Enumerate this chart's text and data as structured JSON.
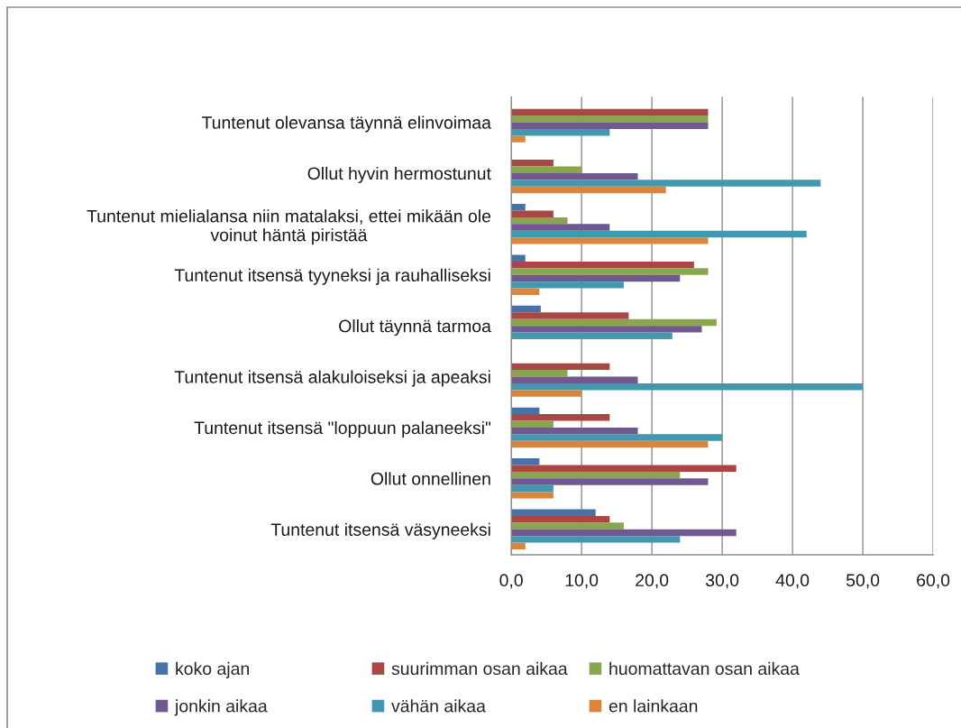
{
  "chart_data": {
    "type": "bar",
    "orientation": "horizontal",
    "categories": [
      "Tuntenut olevansa täynnä elinvoimaa",
      "Ollut hyvin hermostunut",
      "Tuntenut mielialansa niin matalaksi, ettei mikään ole voinut häntä piristää",
      "Tuntenut itsensä tyyneksi ja rauhalliseksi",
      "Ollut täynnä tarmoa",
      "Tuntenut itsensä alakuloiseksi ja apeaksi",
      "Tuntenut itsensä \"loppuun palaneeksi\"",
      "Ollut onnellinen",
      "Tuntenut itsensä väsyneeksi"
    ],
    "series": [
      {
        "name": "koko ajan",
        "color": "#4573a7",
        "values": [
          0,
          0,
          2,
          2,
          4.2,
          0,
          4,
          4,
          12
        ]
      },
      {
        "name": "suurimman osan aikaa",
        "color": "#aa4643",
        "values": [
          28,
          6,
          6,
          26,
          16.7,
          14,
          14,
          32,
          14
        ]
      },
      {
        "name": "huomattavan osan aikaa",
        "color": "#89a54e",
        "values": [
          28,
          10,
          8,
          28,
          29.2,
          8,
          6,
          24,
          16
        ]
      },
      {
        "name": "jonkin aikaa",
        "color": "#71588f",
        "values": [
          28,
          18,
          14,
          24,
          27.1,
          18,
          18,
          28,
          32
        ]
      },
      {
        "name": "vähän aikaa",
        "color": "#4198af",
        "values": [
          14,
          44,
          42,
          16,
          22.9,
          50,
          30,
          6,
          24
        ]
      },
      {
        "name": "en lainkaan",
        "color": "#db843d",
        "values": [
          2,
          22,
          28,
          4,
          0,
          10,
          28,
          6,
          2
        ]
      }
    ],
    "xlim": [
      0,
      60
    ],
    "xticks": [
      {
        "value": 0,
        "label": "0,0"
      },
      {
        "value": 10,
        "label": "10,0"
      },
      {
        "value": 20,
        "label": "20,0"
      },
      {
        "value": 30,
        "label": "30,0"
      },
      {
        "value": 40,
        "label": "40,0"
      },
      {
        "value": 50,
        "label": "50,0"
      },
      {
        "value": 60,
        "label": "60,0"
      }
    ],
    "grid": "x",
    "legend": "bottom"
  }
}
